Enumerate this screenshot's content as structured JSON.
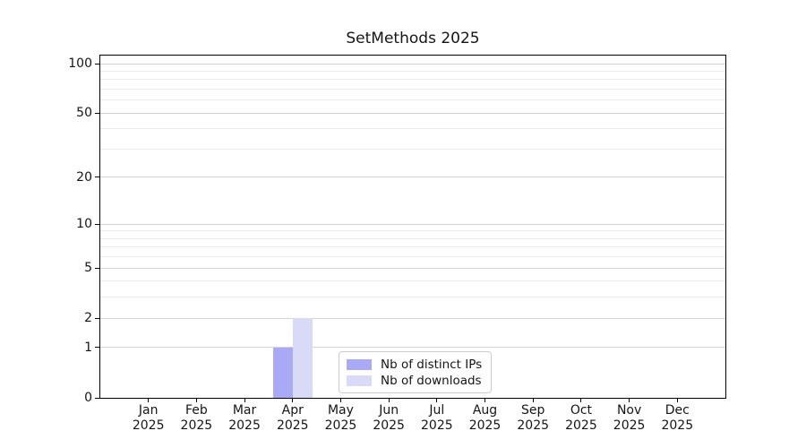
{
  "chart_data": {
    "type": "bar",
    "title": "SetMethods 2025",
    "year": "2025",
    "months": [
      "Jan",
      "Feb",
      "Mar",
      "Apr",
      "May",
      "Jun",
      "Jul",
      "Aug",
      "Sep",
      "Oct",
      "Nov",
      "Dec"
    ],
    "categories": [
      "Jan 2025",
      "Feb 2025",
      "Mar 2025",
      "Apr 2025",
      "May 2025",
      "Jun 2025",
      "Jul 2025",
      "Aug 2025",
      "Sep 2025",
      "Oct 2025",
      "Nov 2025",
      "Dec 2025"
    ],
    "series": [
      {
        "name": "Nb of distinct IPs",
        "color": "#a9a9f5",
        "values": [
          0,
          0,
          0,
          1,
          0,
          0,
          0,
          0,
          0,
          0,
          0,
          0
        ]
      },
      {
        "name": "Nb of downloads",
        "color": "#d9d9f8",
        "values": [
          0,
          0,
          0,
          2,
          0,
          0,
          0,
          0,
          0,
          0,
          0,
          0
        ]
      }
    ],
    "yscale": "log1p",
    "yticks": [
      0,
      1,
      2,
      5,
      10,
      20,
      50,
      100
    ],
    "yticks_minor": [
      3,
      4,
      6,
      7,
      8,
      9,
      30,
      40,
      60,
      70,
      80,
      90
    ],
    "ylim": [
      0,
      112
    ],
    "grid": "horizontal",
    "legend_position": "inside-lower-center",
    "colors": {
      "major_grid": "#d3d3d3",
      "minor_grid": "#ebebeb",
      "spine": "#000000",
      "text": "#151515",
      "background": "#ffffff"
    }
  }
}
